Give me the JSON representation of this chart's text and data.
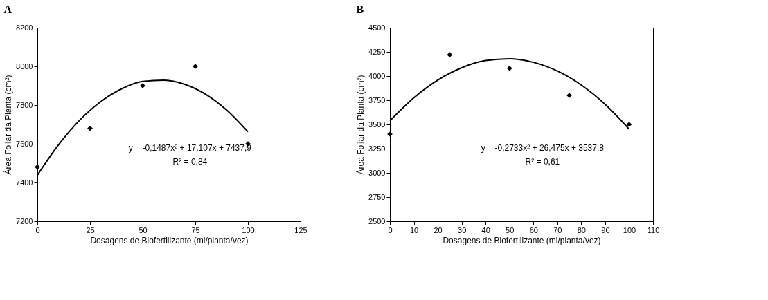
{
  "chart_data": [
    {
      "type": "scatter",
      "title": "A",
      "xlabel": "Dosagens de Biofertilizante (ml/planta/vez)",
      "ylabel": "Área Foliar da Planta (cm²)",
      "annotations": [
        "y = -0,1487x² + 17,107x + 7437,9",
        "R² = 0,84"
      ],
      "xlim": [
        0,
        125
      ],
      "xticks": [
        0,
        25,
        50,
        75,
        100,
        125
      ],
      "ylim": [
        7200,
        8200
      ],
      "yticks": [
        7200,
        7400,
        7600,
        7800,
        8000,
        8200
      ],
      "grid": false,
      "series": [
        {
          "type": "scatter",
          "color": "#000000",
          "marker": "diamond",
          "x": [
            0,
            25,
            50,
            75,
            100
          ],
          "values": [
            7480,
            7680,
            7900,
            8000,
            7600
          ]
        },
        {
          "type": "line",
          "color": "#000000",
          "marker": "none",
          "line_style": "solid",
          "x": [
            0,
            10,
            20,
            30,
            40,
            50,
            60,
            70,
            80,
            90,
            100
          ],
          "values": [
            7438,
            7594,
            7721,
            7817,
            7884,
            7922,
            7929,
            7907,
            7855,
            7773,
            7662
          ]
        }
      ]
    },
    {
      "type": "scatter",
      "title": "B",
      "xlabel": "Dosagens de Biofertilizante (ml/planta/vez)",
      "ylabel": "Área Foliar da Planta (cm²)",
      "annotations": [
        "y = -0,2733x² + 26,475x + 3537,8",
        "R² = 0,61"
      ],
      "xlim": [
        0,
        110
      ],
      "xticks": [
        0,
        10,
        20,
        30,
        40,
        50,
        60,
        70,
        80,
        90,
        100,
        110
      ],
      "ylim": [
        2500,
        4500
      ],
      "yticks": [
        2500,
        2750,
        3000,
        3250,
        3500,
        3750,
        4000,
        4250,
        4500
      ],
      "grid": false,
      "series": [
        {
          "type": "scatter",
          "color": "#000000",
          "marker": "diamond",
          "x": [
            0,
            25,
            50,
            75,
            100
          ],
          "values": [
            3400,
            4220,
            4080,
            3800,
            3500
          ]
        },
        {
          "type": "line",
          "color": "#000000",
          "marker": "none",
          "line_style": "solid",
          "x": [
            0,
            10,
            20,
            30,
            40,
            50,
            60,
            70,
            80,
            90,
            100
          ],
          "values": [
            3538,
            3775,
            3958,
            4086,
            4160,
            4178,
            4142,
            4052,
            3907,
            3707,
            3452
          ]
        }
      ]
    }
  ]
}
